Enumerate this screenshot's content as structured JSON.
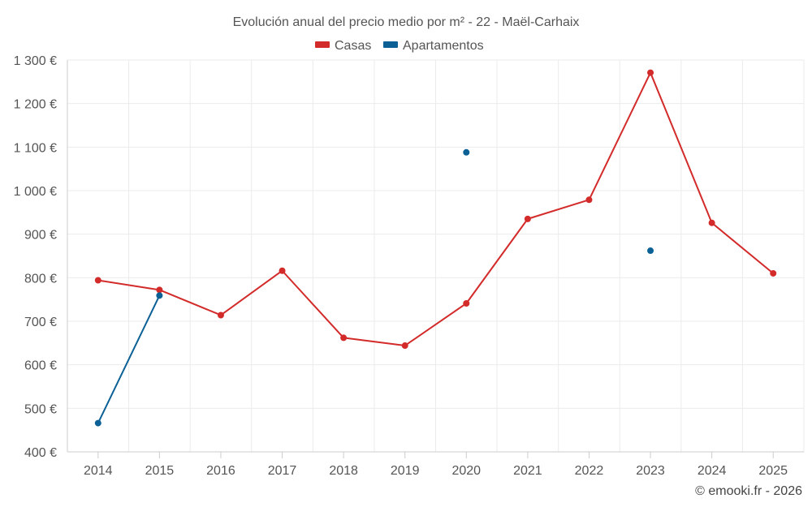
{
  "chart_data": {
    "type": "line",
    "title": "Evolución anual del precio medio por m² - 22 - Maël-Carhaix",
    "categories": [
      "2014",
      "2015",
      "2016",
      "2017",
      "2018",
      "2019",
      "2020",
      "2021",
      "2022",
      "2023",
      "2024",
      "2025"
    ],
    "ylim": [
      400,
      1300
    ],
    "yticks": [
      400,
      500,
      600,
      700,
      800,
      900,
      1000,
      1100,
      1200,
      1300
    ],
    "ytick_labels": [
      "400 €",
      "500 €",
      "600 €",
      "700 €",
      "800 €",
      "900 €",
      "1 000 €",
      "1 100 €",
      "1 200 €",
      "1 300 €"
    ],
    "grid": true,
    "legend_position": "top-center",
    "series": [
      {
        "name": "Casas",
        "color": "#d32a2a",
        "values": [
          794,
          772,
          714,
          816,
          662,
          644,
          741,
          935,
          979,
          1271,
          926,
          810
        ]
      },
      {
        "name": "Apartamentos",
        "color": "#0b6096",
        "values": [
          466,
          759,
          null,
          null,
          null,
          null,
          1088,
          null,
          null,
          862,
          null,
          null
        ]
      }
    ],
    "credit": "© emooki.fr - 2026"
  }
}
